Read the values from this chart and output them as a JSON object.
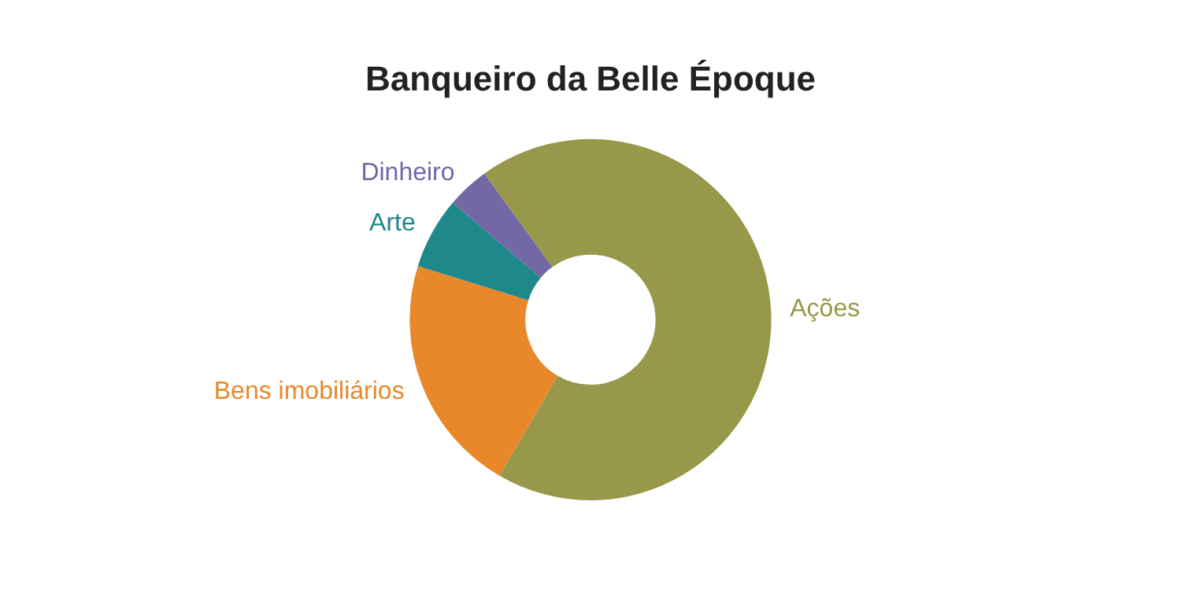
{
  "chart_data": {
    "type": "donut",
    "title": "Banqueiro da Belle Époque",
    "categories": [
      "Ações",
      "Bens imobiliários",
      "Arte",
      "Dinheiro"
    ],
    "values": [
      68.4,
      21.4,
      6.4,
      3.8
    ],
    "colors": [
      "#98984a",
      "#e8882a",
      "#1e888a",
      "#7367a6"
    ],
    "legend": false
  }
}
